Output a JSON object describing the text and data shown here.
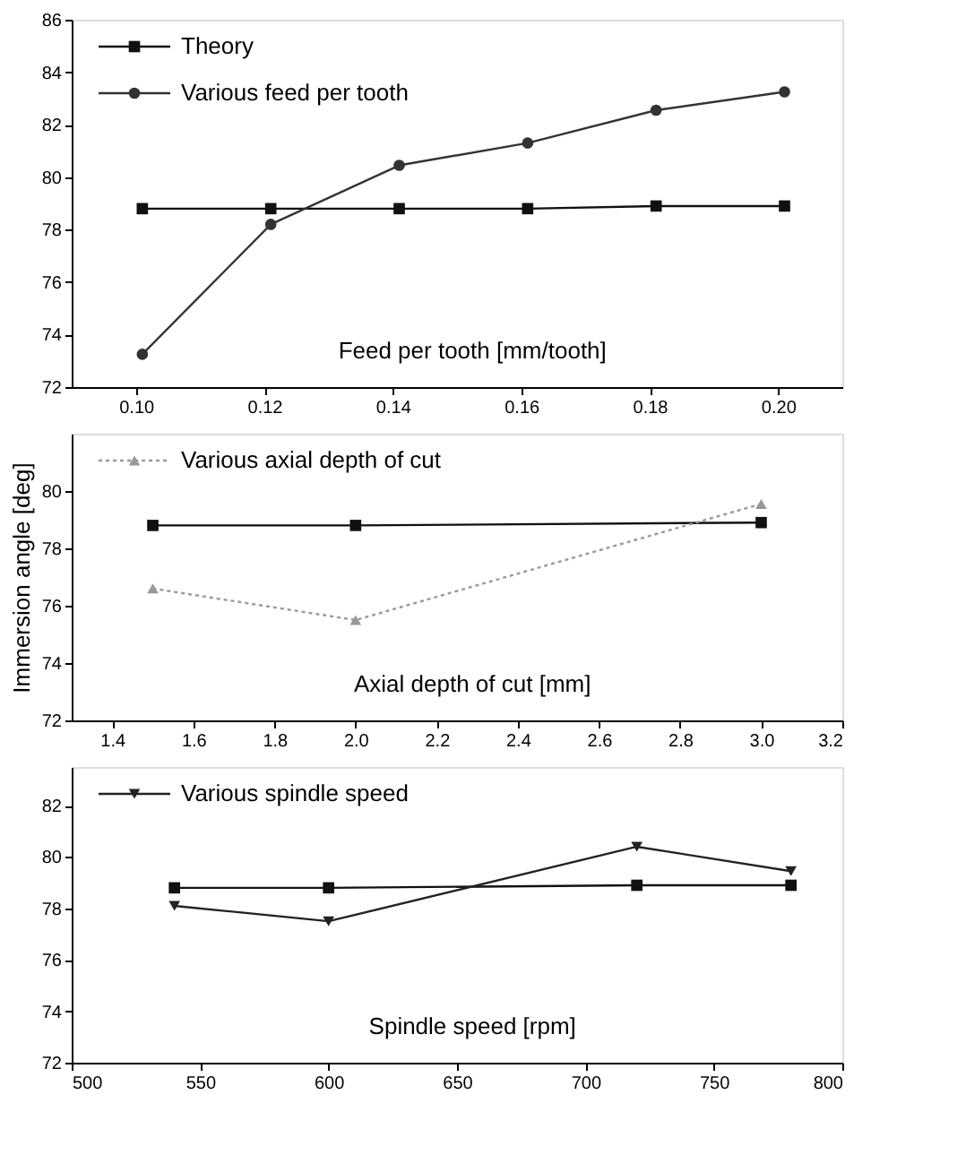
{
  "chart_data": [
    {
      "type": "line",
      "xlabel": "Feed per tooth [mm/tooth]",
      "x": [
        0.101,
        0.121,
        0.141,
        0.161,
        0.181,
        0.201
      ],
      "xlim": [
        0.09,
        0.21
      ],
      "xticks": [
        {
          "value": 0.1,
          "label": "0.10"
        },
        {
          "value": 0.12,
          "label": "0.12"
        },
        {
          "value": 0.14,
          "label": "0.14"
        },
        {
          "value": 0.16,
          "label": "0.16"
        },
        {
          "value": 0.18,
          "label": "0.18"
        },
        {
          "value": 0.2,
          "label": "0.20"
        }
      ],
      "ylim": [
        72,
        86
      ],
      "yticks": [
        72,
        74,
        76,
        78,
        80,
        82,
        84,
        86
      ],
      "grid": false,
      "legend": "top left",
      "series": [
        {
          "name": "Theory",
          "color": "#111111",
          "marker": "square",
          "line_style": "solid",
          "values": [
            78.8,
            78.8,
            78.8,
            78.8,
            78.9,
            78.9
          ]
        },
        {
          "name": "Various feed per tooth",
          "color": "#333333",
          "marker": "circle",
          "line_style": "solid",
          "values": [
            73.25,
            78.2,
            80.45,
            81.3,
            82.55,
            83.25
          ]
        }
      ]
    },
    {
      "type": "line",
      "xlabel": "Axial depth of cut [mm]",
      "ylabel": "Immersion angle [deg]",
      "x": [
        1.5,
        2.0,
        3.0
      ],
      "xlim": [
        1.3,
        3.2
      ],
      "xticks": [
        1.4,
        1.6,
        1.8,
        {
          "value": 2.0,
          "label": "2.0"
        },
        2.2,
        2.4,
        2.6,
        2.8,
        {
          "value": 3.0,
          "label": "3.0"
        },
        3.2
      ],
      "ylim": [
        72,
        82
      ],
      "yticks": [
        72,
        74,
        76,
        78,
        80
      ],
      "grid": false,
      "legend": "top left",
      "series": [
        {
          "color": "#111111",
          "marker": "square",
          "line_style": "solid",
          "values": [
            78.8,
            78.8,
            78.9
          ]
        },
        {
          "name": "Various axial depth of cut",
          "color": "#999999",
          "marker": "triangle",
          "line_style": "dotted",
          "values": [
            76.6,
            75.5,
            79.55
          ]
        }
      ]
    },
    {
      "type": "line",
      "xlabel": "Spindle speed [rpm]",
      "x": [
        540,
        600,
        720,
        780
      ],
      "xlim": [
        500,
        800
      ],
      "xticks": [
        500,
        550,
        600,
        650,
        700,
        750,
        800
      ],
      "ylim": [
        72,
        83.5
      ],
      "yticks": [
        72,
        74,
        76,
        78,
        80,
        82
      ],
      "grid": false,
      "legend": "top left",
      "series": [
        {
          "color": "#111111",
          "marker": "square",
          "line_style": "solid",
          "values": [
            78.8,
            78.8,
            78.9,
            78.9
          ]
        },
        {
          "name": "Various spindle speed",
          "color": "#222222",
          "marker": "triangle-down",
          "line_style": "solid",
          "values": [
            78.1,
            77.5,
            80.4,
            79.45
          ]
        }
      ]
    }
  ]
}
